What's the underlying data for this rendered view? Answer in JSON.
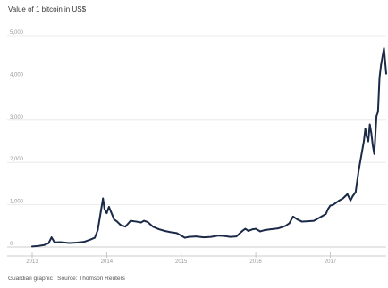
{
  "chart_data": {
    "type": "line",
    "title": "Value of 1 bitcoin in US$",
    "source": "Guardian graphic | Source: Thomson Reuters",
    "xlabel": "",
    "ylabel": "",
    "xlim": [
      2013.0,
      2017.75
    ],
    "ylim": [
      0,
      5000
    ],
    "yticks": [
      0,
      1000,
      2000,
      3000,
      4000,
      5000
    ],
    "ytick_labels": [
      "0",
      "1,000",
      "2,000",
      "3,000",
      "4,000",
      "5,000"
    ],
    "xticks": [
      2013,
      2014,
      2015,
      2016,
      2017
    ],
    "xtick_labels": [
      "2013",
      "2014",
      "2015",
      "2016",
      "2017"
    ],
    "grid": true,
    "legend": "none",
    "colors": {
      "line": "#1b2a48",
      "grid": "#e6e6e6",
      "axis": "#bbbbbb"
    },
    "series": [
      {
        "x": [
          2013.0,
          2013.08,
          2013.16,
          2013.22,
          2013.26,
          2013.3,
          2013.38,
          2013.5,
          2013.6,
          2013.7,
          2013.78,
          2013.84,
          2013.88,
          2013.92,
          2013.95,
          2013.97,
          2014.0,
          2014.03,
          2014.06,
          2014.1,
          2014.14,
          2014.18,
          2014.25,
          2014.32,
          2014.4,
          2014.46,
          2014.5,
          2014.55,
          2014.62,
          2014.7,
          2014.78,
          2014.86,
          2014.94,
          2015.0,
          2015.05,
          2015.1,
          2015.2,
          2015.3,
          2015.4,
          2015.5,
          2015.58,
          2015.66,
          2015.74,
          2015.82,
          2015.86,
          2015.9,
          2015.96,
          2016.0,
          2016.06,
          2016.12,
          2016.2,
          2016.3,
          2016.4,
          2016.45,
          2016.5,
          2016.56,
          2016.62,
          2016.7,
          2016.78,
          2016.86,
          2016.94,
          2016.97,
          2017.0,
          2017.04,
          2017.08,
          2017.12,
          2017.17,
          2017.2,
          2017.23,
          2017.27,
          2017.3,
          2017.34,
          2017.38,
          2017.42,
          2017.45,
          2017.47,
          2017.49,
          2017.51,
          2017.53,
          2017.55,
          2017.57,
          2017.59,
          2017.62,
          2017.64,
          2017.66,
          2017.68,
          2017.7,
          2017.72,
          2017.75
        ],
        "y": [
          14,
          25,
          47,
          90,
          230,
          110,
          115,
          95,
          105,
          125,
          175,
          220,
          400,
          830,
          1150,
          900,
          800,
          950,
          820,
          650,
          600,
          530,
          480,
          620,
          600,
          580,
          620,
          590,
          480,
          420,
          380,
          350,
          330,
          270,
          220,
          240,
          250,
          230,
          240,
          270,
          260,
          240,
          250,
          380,
          430,
          380,
          420,
          430,
          370,
          400,
          420,
          440,
          500,
          560,
          720,
          650,
          600,
          610,
          620,
          700,
          780,
          900,
          980,
          1000,
          1050,
          1100,
          1150,
          1200,
          1250,
          1100,
          1200,
          1300,
          1800,
          2200,
          2500,
          2800,
          2600,
          2500,
          2900,
          2700,
          2400,
          2200,
          3100,
          3200,
          4000,
          4300,
          4500,
          4700,
          4100
        ]
      }
    ]
  }
}
